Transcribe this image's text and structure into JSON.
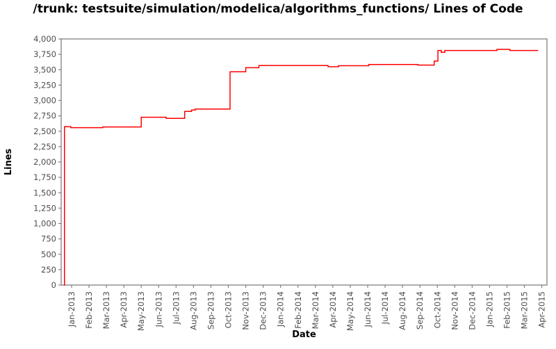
{
  "title": "/trunk: testsuite/simulation/modelica/algorithms_functions/ Lines of Code",
  "chart_data": {
    "type": "line",
    "step": "after",
    "title": "/trunk: testsuite/simulation/modelica/algorithms_functions/ Lines of Code",
    "xlabel": "Date",
    "ylabel": "Lines",
    "ylim": [
      0,
      4000
    ],
    "y_ticks": [
      0,
      250,
      500,
      750,
      1000,
      1250,
      1500,
      1750,
      2000,
      2250,
      2500,
      2750,
      3000,
      3250,
      3500,
      3750,
      4000
    ],
    "x_ticks": [
      "Jan-2013",
      "Feb-2013",
      "Mar-2013",
      "Apr-2013",
      "May-2013",
      "Jun-2013",
      "Jul-2013",
      "Aug-2013",
      "Sep-2013",
      "Oct-2013",
      "Nov-2013",
      "Dec-2013",
      "Jan-2014",
      "Feb-2014",
      "Mar-2014",
      "Apr-2014",
      "May-2014",
      "Jun-2014",
      "Jul-2014",
      "Aug-2014",
      "Sep-2014",
      "Oct-2014",
      "Nov-2014",
      "Dec-2014",
      "Jan-2015",
      "Feb-2015",
      "Mar-2015",
      "Apr-2015"
    ],
    "grid": false,
    "legend": "none",
    "colors": {
      "series": "#ff0000",
      "plot_border": "#808080",
      "tick_labels": "#4d4d4d",
      "axis_labels": "#000000",
      "title": "#000000",
      "background": "#ffffff"
    },
    "series": [
      {
        "name": "Lines of Code",
        "color": "#ff0000",
        "points": [
          [
            "2012-12-18",
            0
          ],
          [
            "2012-12-19",
            2575
          ],
          [
            "2012-12-30",
            2558
          ],
          [
            "2013-02-25",
            2570
          ],
          [
            "2013-05-01",
            2728
          ],
          [
            "2013-06-14",
            2710
          ],
          [
            "2013-07-16",
            2822
          ],
          [
            "2013-07-28",
            2845
          ],
          [
            "2013-08-04",
            2860
          ],
          [
            "2013-10-04",
            3465
          ],
          [
            "2013-11-01",
            3532
          ],
          [
            "2013-11-24",
            3568
          ],
          [
            "2014-03-23",
            3548
          ],
          [
            "2014-04-11",
            3565
          ],
          [
            "2014-06-03",
            3585
          ],
          [
            "2014-08-28",
            3575
          ],
          [
            "2014-09-26",
            3640
          ],
          [
            "2014-10-02",
            3812
          ],
          [
            "2014-10-08",
            3782
          ],
          [
            "2014-10-14",
            3812
          ],
          [
            "2015-01-14",
            3830
          ],
          [
            "2015-02-06",
            3812
          ],
          [
            "2015-03-25",
            3812
          ]
        ]
      }
    ]
  }
}
